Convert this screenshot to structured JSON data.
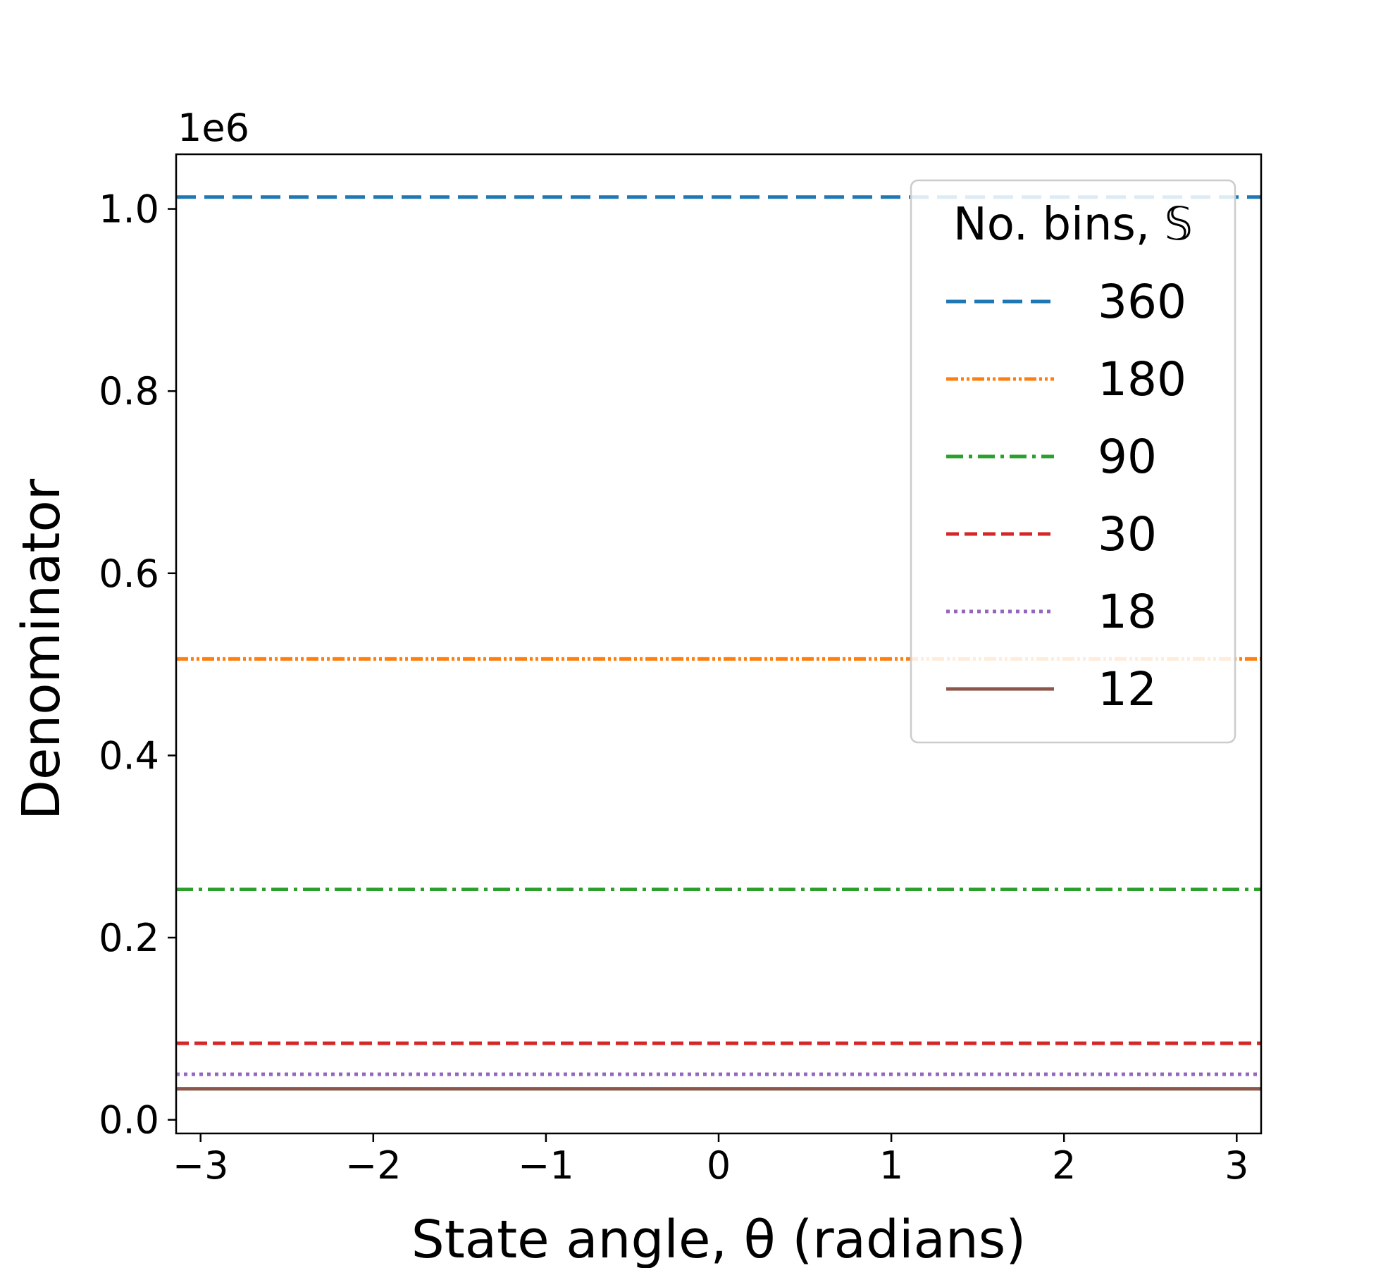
{
  "chart_data": {
    "type": "line",
    "xlabel": "State angle, θ (radians)",
    "ylabel": "Denominator",
    "y_offset_label": "1e6",
    "xlim": [
      -3.14159,
      3.14159
    ],
    "ylim": [
      -0.015,
      1.06
    ],
    "y_scale_multiplier": 1000000,
    "x_ticks": [
      -3,
      -2,
      -1,
      0,
      1,
      2,
      3
    ],
    "x_tick_labels": [
      "−3",
      "−2",
      "−1",
      "0",
      "1",
      "2",
      "3"
    ],
    "y_ticks": [
      0.0,
      0.2,
      0.4,
      0.6,
      0.8,
      1.0
    ],
    "y_tick_labels": [
      "0.0",
      "0.2",
      "0.4",
      "0.6",
      "0.8",
      "1.0"
    ],
    "grid": false,
    "legend": {
      "title": "No. bins, 𝕊",
      "placement": "upper right"
    },
    "series": [
      {
        "name": "360",
        "color": "#1f77b4",
        "style": "dashed",
        "x": [
          -3.14159,
          3.14159
        ],
        "y": [
          1.013,
          1.013
        ]
      },
      {
        "name": "180",
        "color": "#ff7f0e",
        "style": "dash-dot-dot",
        "x": [
          -3.14159,
          3.14159
        ],
        "y": [
          0.506,
          0.506
        ]
      },
      {
        "name": "90",
        "color": "#2ca02c",
        "style": "dash-dot",
        "x": [
          -3.14159,
          3.14159
        ],
        "y": [
          0.253,
          0.253
        ]
      },
      {
        "name": "30",
        "color": "#d62728",
        "style": "dashed-short",
        "x": [
          -3.14159,
          3.14159
        ],
        "y": [
          0.084,
          0.084
        ]
      },
      {
        "name": "18",
        "color": "#9467bd",
        "style": "dotted",
        "x": [
          -3.14159,
          3.14159
        ],
        "y": [
          0.05,
          0.05
        ]
      },
      {
        "name": "12",
        "color": "#8c564b",
        "style": "solid",
        "x": [
          -3.14159,
          3.14159
        ],
        "y": [
          0.034,
          0.034
        ]
      }
    ]
  }
}
